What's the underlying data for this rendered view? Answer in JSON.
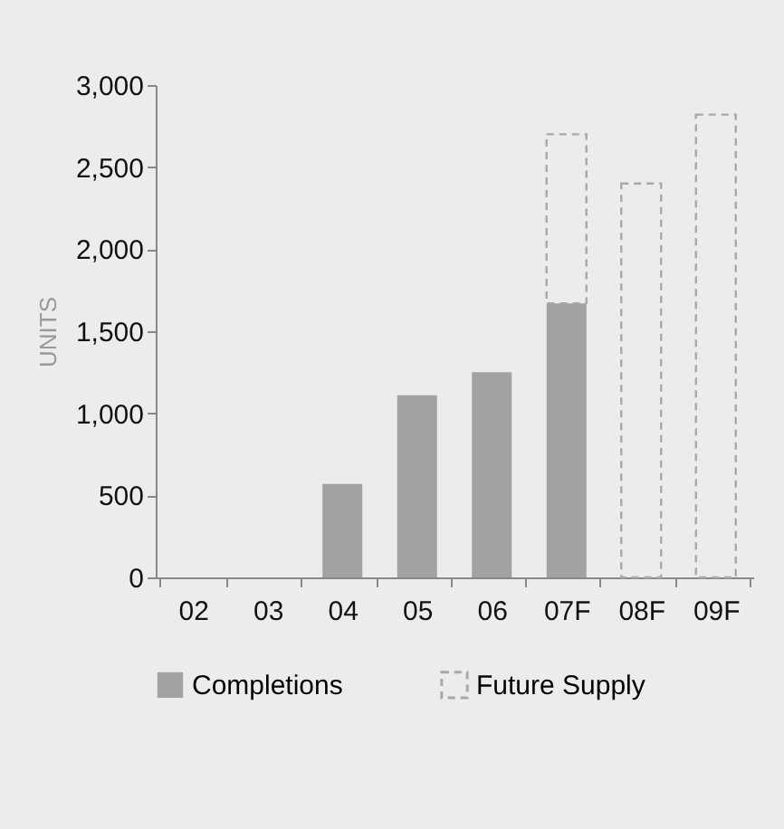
{
  "chart_data": {
    "type": "bar",
    "ylabel": "UNITS",
    "categories": [
      "02",
      "03",
      "04",
      "05",
      "06",
      "07F",
      "08F",
      "09F"
    ],
    "stacked": true,
    "series": [
      {
        "name": "Completions",
        "color": "#a2a2a4",
        "values": [
          null,
          null,
          570,
          1110,
          1250,
          1670,
          null,
          null
        ]
      },
      {
        "name": "Future Supply",
        "color": "#a8a8a8",
        "line_style": "dashed",
        "values": [
          null,
          null,
          null,
          null,
          null,
          1030,
          2400,
          2820
        ]
      }
    ],
    "ylim": [
      0,
      3000
    ],
    "yticks": [
      0,
      {
        "value": 500,
        "label": "500"
      },
      {
        "value": 1000,
        "label": "1,000"
      },
      {
        "value": 1500,
        "label": "1,500"
      },
      {
        "value": 2000,
        "label": "2,000"
      },
      {
        "value": 2500,
        "label": "2,500"
      },
      {
        "value": 3000,
        "label": "3,000"
      }
    ],
    "grid": false,
    "legend": "bottom"
  }
}
